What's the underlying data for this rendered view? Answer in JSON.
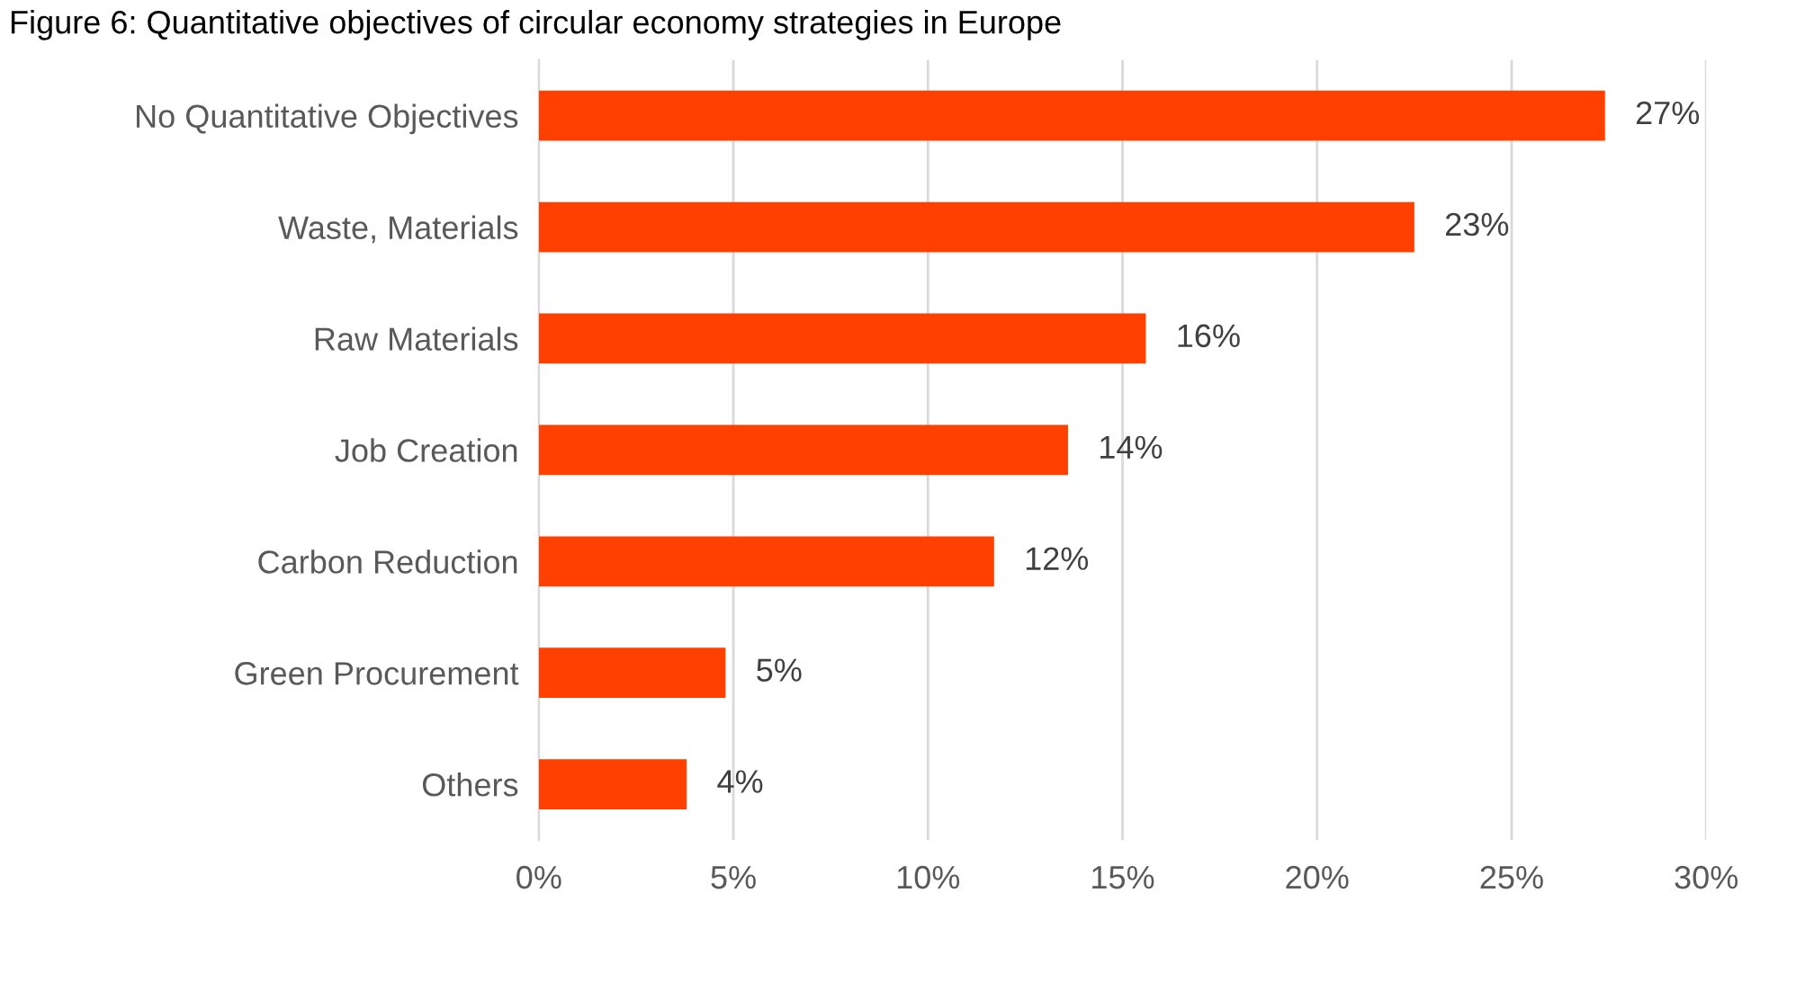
{
  "chart_data": {
    "type": "bar",
    "orientation": "horizontal",
    "title": "Figure 6: Quantitative objectives of circular economy strategies in Europe",
    "categories": [
      "No Quantitative Objectives",
      "Waste, Materials",
      "Raw Materials",
      "Job Creation",
      "Carbon Reduction",
      "Green Procurement",
      "Others"
    ],
    "values": [
      27.4,
      22.5,
      15.6,
      13.6,
      11.7,
      4.8,
      3.8
    ],
    "value_labels": [
      "27%",
      "23%",
      "16%",
      "14%",
      "12%",
      "5%",
      "4%"
    ],
    "color": "#ff4000",
    "xlim": [
      0,
      30
    ],
    "xticks": [
      {
        "value": 0,
        "label": "0%"
      },
      {
        "value": 5,
        "label": "5%"
      },
      {
        "value": 10,
        "label": "10%"
      },
      {
        "value": 15,
        "label": "15%"
      },
      {
        "value": 20,
        "label": "20%"
      },
      {
        "value": 25,
        "label": "25%"
      },
      {
        "value": 30,
        "label": "30%"
      }
    ],
    "grid": "x"
  }
}
